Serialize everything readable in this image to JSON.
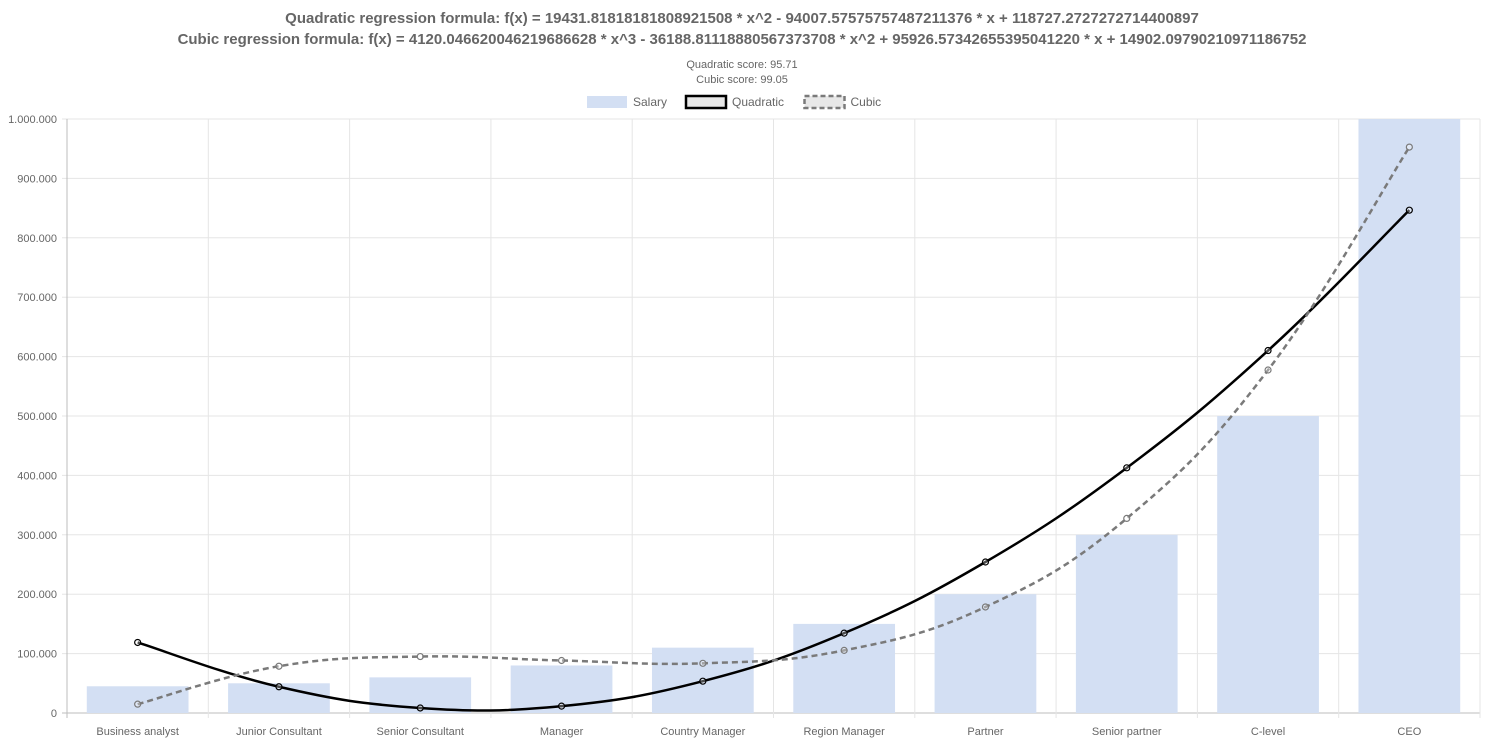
{
  "chart_data": {
    "type": "bar",
    "title_lines": [
      "Quadratic regression formula: f(x) = 19431.81818181808921508 * x^2 - 94007.57575757487211376 * x + 118727.2727272714400897",
      "Cubic regression formula: f(x) = 4120.046620046219686628 * x^3 - 36188.81118880567373708 * x^2 + 95926.57342655395041220 * x + 14902.09790210971186752"
    ],
    "scores": [
      "Quadratic score: 95.71",
      "Cubic score: 99.05"
    ],
    "categories": [
      "Business analyst",
      "Junior Consultant",
      "Senior Consultant",
      "Manager",
      "Country Manager",
      "Region Manager",
      "Partner",
      "Senior partner",
      "C-level",
      "CEO"
    ],
    "y_ticks": [
      "0",
      "100.000",
      "200.000",
      "300.000",
      "400.000",
      "500.000",
      "600.000",
      "700.000",
      "800.000",
      "900.000",
      "1.000.000"
    ],
    "ylim": [
      0,
      1000000
    ],
    "grid": true,
    "legend_position": "top",
    "series": [
      {
        "name": "Salary",
        "kind": "bar",
        "color": "#d3dff3",
        "values": [
          45000,
          50000,
          60000,
          80000,
          110000,
          150000,
          200000,
          300000,
          500000,
          1000000
        ]
      },
      {
        "name": "Quadratic",
        "kind": "line",
        "color": "#000000",
        "dashed": false,
        "values": [
          118727,
          44151,
          8436,
          11582,
          53588,
          134455,
          254182,
          412770,
          610218,
          846527
        ]
      },
      {
        "name": "Cubic",
        "kind": "line",
        "color": "#7a7a7a",
        "dashed": true,
        "values": [
          14902,
          78760,
          95021,
          88406,
          83636,
          105431,
          178513,
          327601,
          577418,
          952683
        ]
      }
    ],
    "legend": [
      {
        "name": "Salary",
        "style": "bar",
        "color": "#d3dff3"
      },
      {
        "name": "Quadratic",
        "style": "solid",
        "color": "#000000"
      },
      {
        "name": "Cubic",
        "style": "dashed",
        "color": "#7a7a7a"
      }
    ]
  }
}
